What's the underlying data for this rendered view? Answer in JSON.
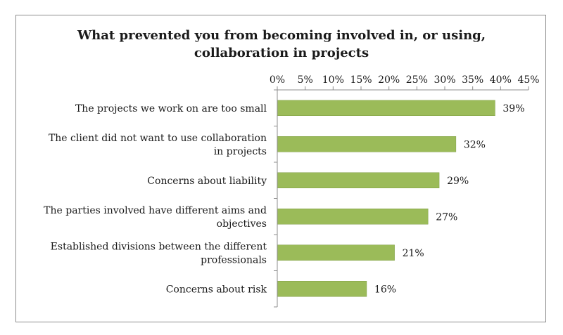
{
  "chart_data": {
    "type": "bar",
    "orientation": "horizontal",
    "title_lines": [
      "What prevented you from becoming involved in, or using,",
      "collaboration in projects"
    ],
    "categories": [
      [
        "The projects we work on are too small"
      ],
      [
        "The client did not want to use collaboration",
        "in projects"
      ],
      [
        "Concerns about liability"
      ],
      [
        "The parties involved have different aims and",
        "objectives"
      ],
      [
        "Established divisions between the different",
        "professionals"
      ],
      [
        "Concerns about risk"
      ]
    ],
    "values": [
      39,
      32,
      29,
      27,
      21,
      16
    ],
    "data_labels": [
      "39%",
      "32%",
      "29%",
      "27%",
      "21%",
      "16%"
    ],
    "xlim": [
      0,
      45
    ],
    "xticks": [
      0,
      5,
      10,
      15,
      20,
      25,
      30,
      35,
      40,
      45
    ],
    "xtick_labels": [
      "0%",
      "5%",
      "10%",
      "15%",
      "20%",
      "25%",
      "30%",
      "35%",
      "40%",
      "45%"
    ],
    "axis_position": "top",
    "grid": false,
    "legend": "none",
    "bar_color": "#9bbb59",
    "bar_stroke": "#7f9e45"
  }
}
